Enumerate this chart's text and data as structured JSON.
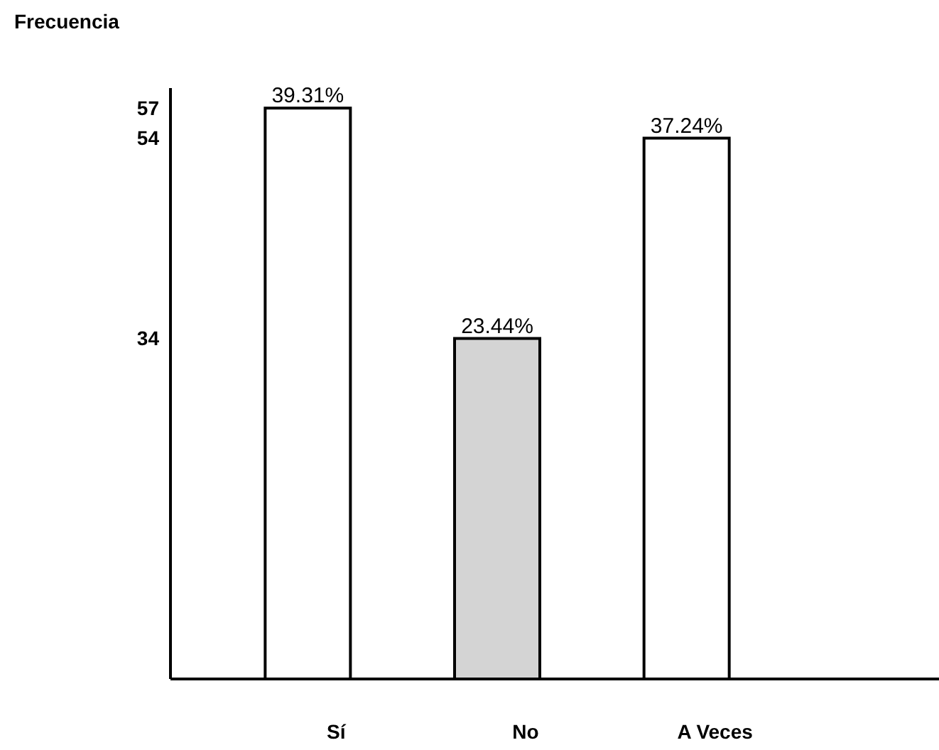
{
  "chart_data": {
    "type": "bar",
    "ylabel": "Frecuencia",
    "categories": [
      "Sí",
      "No",
      "A Veces"
    ],
    "values": [
      57,
      34,
      54
    ],
    "colors": [
      "#ffffff",
      "#d4d4d4",
      "#ffffff"
    ],
    "annotations": [
      {
        "text": "39.31%",
        "x": "Sí",
        "y": 57
      },
      {
        "text": "23.44%",
        "x": "No",
        "y": 34
      },
      {
        "text": "37.24%",
        "x": "A Veces",
        "y": 54
      }
    ],
    "ylim": [
      0,
      59
    ],
    "yticks": [
      34,
      54,
      57
    ]
  }
}
